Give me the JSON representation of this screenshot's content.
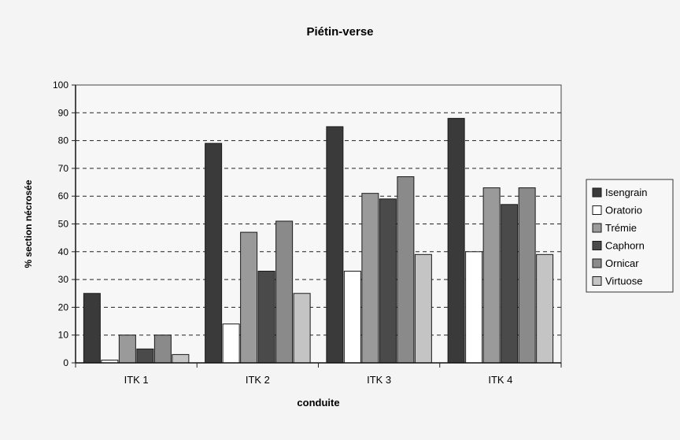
{
  "chart_data": {
    "type": "bar",
    "title": "Piétin-verse",
    "xlabel": "conduite",
    "ylabel": "% section nécrosée",
    "ylim": [
      0,
      100
    ],
    "yticks": [
      0,
      10,
      20,
      30,
      40,
      50,
      60,
      70,
      80,
      90,
      100
    ],
    "grid": "horizontal dashed",
    "legend_position": "right",
    "categories": [
      "ITK 1",
      "ITK 2",
      "ITK 3",
      "ITK 4"
    ],
    "series": [
      {
        "name": "Isengrain",
        "color": "#3a3a3a",
        "values": [
          25,
          79,
          85,
          88
        ]
      },
      {
        "name": "Oratorio",
        "color": "#ffffff",
        "values": [
          1,
          14,
          33,
          40
        ]
      },
      {
        "name": "Trémie",
        "color": "#9a9a9a",
        "values": [
          10,
          47,
          61,
          63
        ]
      },
      {
        "name": "Caphorn",
        "color": "#4a4a4a",
        "values": [
          5,
          33,
          59,
          57
        ]
      },
      {
        "name": "Ornicar",
        "color": "#8a8a8a",
        "values": [
          10,
          51,
          67,
          63
        ]
      },
      {
        "name": "Virtuose",
        "color": "#c4c4c4",
        "values": [
          3,
          25,
          39,
          39
        ]
      }
    ]
  }
}
